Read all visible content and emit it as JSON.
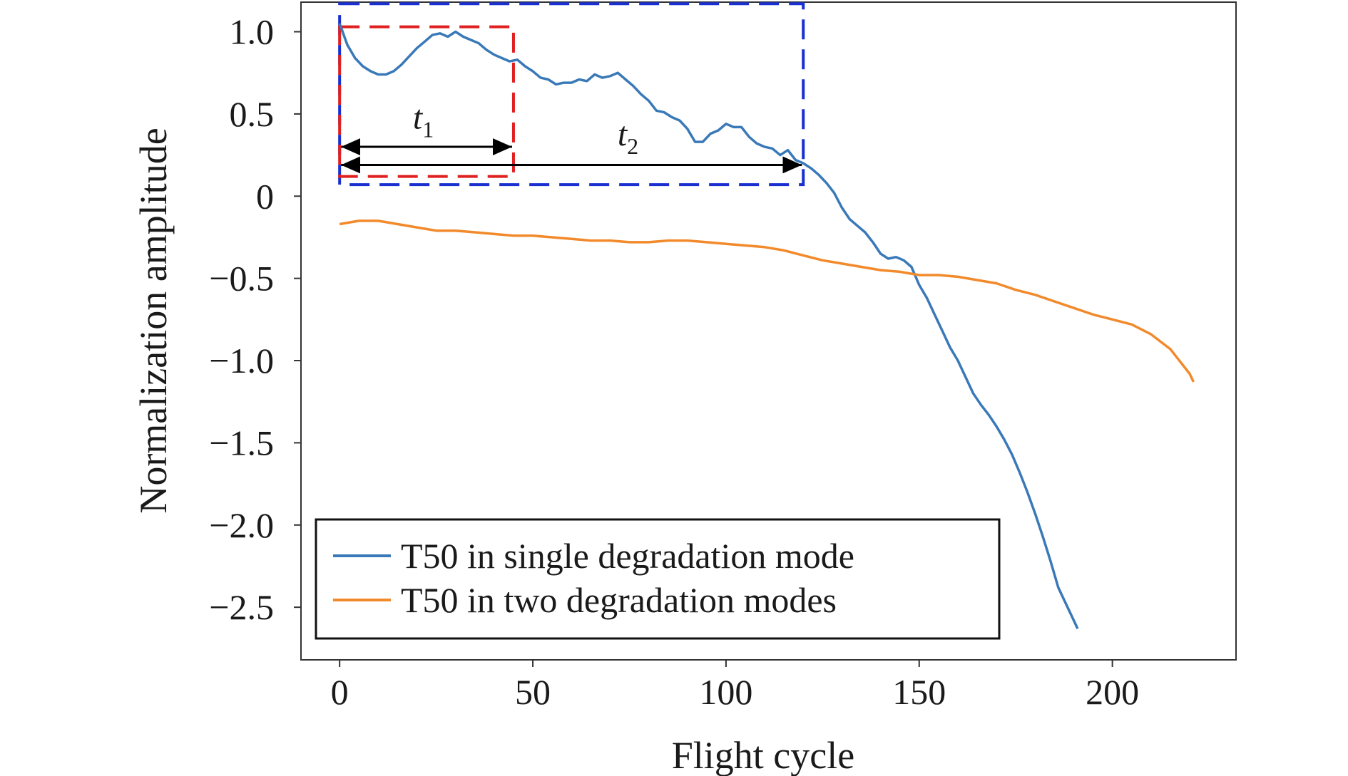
{
  "chart_data": {
    "type": "line",
    "title": "",
    "xlabel": "Flight cycle",
    "ylabel": "Normalization amplitude",
    "xlim": [
      -10,
      232
    ],
    "ylim": [
      -2.82,
      1.18
    ],
    "xticks": [
      0,
      50,
      100,
      150,
      200
    ],
    "xtick_labels": [
      "0",
      "50",
      "100",
      "150",
      "200"
    ],
    "yticks": [
      1.0,
      0.5,
      0,
      -0.5,
      -1.0,
      -1.5,
      -2.0,
      -2.5
    ],
    "ytick_labels": [
      "1.0",
      "0.5",
      "0",
      "−0.5",
      "−1.0",
      "−1.5",
      "−2.0",
      "−2.5"
    ],
    "grid": false,
    "legend_position": "lower-left",
    "series": [
      {
        "name": "T50 in single degradation mode",
        "color": "#3a79b8",
        "x": [
          0,
          2,
          4,
          6,
          8,
          10,
          12,
          14,
          16,
          18,
          20,
          22,
          24,
          26,
          28,
          30,
          32,
          34,
          36,
          38,
          40,
          42,
          44,
          46,
          48,
          50,
          52,
          54,
          56,
          58,
          60,
          62,
          64,
          66,
          68,
          70,
          72,
          74,
          76,
          78,
          80,
          82,
          84,
          86,
          88,
          90,
          92,
          94,
          96,
          98,
          100,
          102,
          104,
          106,
          108,
          110,
          112,
          114,
          116,
          118,
          120,
          122,
          124,
          126,
          128,
          130,
          132,
          134,
          136,
          138,
          140,
          142,
          144,
          146,
          148,
          150,
          152,
          154,
          156,
          158,
          160,
          162,
          164,
          166,
          168,
          170,
          172,
          174,
          176,
          178,
          180,
          182,
          184,
          186,
          188,
          190,
          191
        ],
        "y": [
          1.05,
          0.92,
          0.84,
          0.79,
          0.76,
          0.74,
          0.74,
          0.76,
          0.8,
          0.85,
          0.9,
          0.94,
          0.98,
          0.99,
          0.97,
          1.0,
          0.97,
          0.95,
          0.93,
          0.89,
          0.86,
          0.84,
          0.82,
          0.83,
          0.79,
          0.76,
          0.72,
          0.71,
          0.68,
          0.69,
          0.69,
          0.71,
          0.7,
          0.74,
          0.72,
          0.73,
          0.75,
          0.71,
          0.67,
          0.62,
          0.58,
          0.52,
          0.51,
          0.48,
          0.46,
          0.41,
          0.33,
          0.33,
          0.38,
          0.4,
          0.44,
          0.42,
          0.42,
          0.36,
          0.32,
          0.3,
          0.29,
          0.25,
          0.28,
          0.22,
          0.2,
          0.17,
          0.13,
          0.08,
          0.02,
          -0.07,
          -0.14,
          -0.18,
          -0.22,
          -0.28,
          -0.35,
          -0.38,
          -0.37,
          -0.39,
          -0.43,
          -0.54,
          -0.62,
          -0.72,
          -0.82,
          -0.92,
          -1.0,
          -1.1,
          -1.2,
          -1.27,
          -1.33,
          -1.4,
          -1.48,
          -1.57,
          -1.68,
          -1.8,
          -1.93,
          -2.07,
          -2.22,
          -2.38,
          -2.48,
          -2.58,
          -2.63
        ]
      },
      {
        "name": "T50 in two degradation modes",
        "color": "#f28a2c",
        "x": [
          0,
          5,
          10,
          15,
          20,
          25,
          30,
          35,
          40,
          45,
          50,
          55,
          60,
          65,
          70,
          75,
          80,
          85,
          90,
          95,
          100,
          105,
          110,
          115,
          120,
          125,
          130,
          135,
          140,
          145,
          150,
          155,
          160,
          165,
          170,
          175,
          180,
          185,
          190,
          195,
          200,
          205,
          210,
          215,
          220,
          221
        ],
        "y": [
          -0.17,
          -0.15,
          -0.15,
          -0.17,
          -0.19,
          -0.21,
          -0.21,
          -0.22,
          -0.23,
          -0.24,
          -0.24,
          -0.25,
          -0.26,
          -0.27,
          -0.27,
          -0.28,
          -0.28,
          -0.27,
          -0.27,
          -0.28,
          -0.29,
          -0.3,
          -0.31,
          -0.33,
          -0.36,
          -0.39,
          -0.41,
          -0.43,
          -0.45,
          -0.46,
          -0.48,
          -0.48,
          -0.49,
          -0.51,
          -0.53,
          -0.57,
          -0.6,
          -0.64,
          -0.68,
          -0.72,
          -0.75,
          -0.78,
          -0.84,
          -0.93,
          -1.08,
          -1.13
        ]
      }
    ],
    "annotations": {
      "t1": {
        "label": "t",
        "sub": "1",
        "x_start": 0,
        "x_end": 45,
        "y": 0.3,
        "box_color": "#e02020",
        "box_x": [
          0,
          45
        ],
        "box_y": [
          0.12,
          1.03
        ]
      },
      "t2": {
        "label": "t",
        "sub": "2",
        "x_start": 0,
        "x_end": 120,
        "y": 0.19,
        "box_color": "#1a2fd0",
        "box_x": [
          0,
          120
        ],
        "box_y": [
          0.07,
          1.17
        ]
      }
    }
  }
}
